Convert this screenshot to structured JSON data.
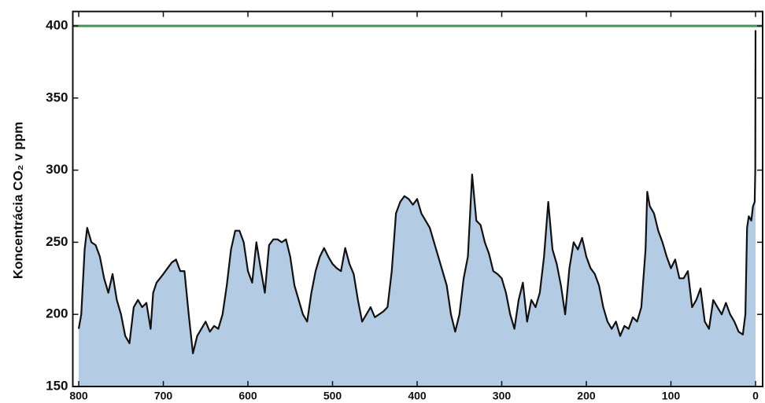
{
  "chart_data": {
    "type": "area",
    "y_label": "Koncentrácia CO₂ v ppm",
    "x": [
      800,
      797,
      793,
      790,
      785,
      780,
      775,
      770,
      765,
      760,
      755,
      750,
      745,
      740,
      735,
      730,
      725,
      720,
      715,
      712,
      708,
      700,
      695,
      690,
      685,
      680,
      675,
      670,
      665,
      660,
      655,
      650,
      645,
      640,
      635,
      630,
      625,
      620,
      615,
      610,
      605,
      600,
      595,
      590,
      585,
      580,
      575,
      570,
      565,
      560,
      555,
      550,
      545,
      540,
      535,
      530,
      525,
      520,
      515,
      510,
      505,
      500,
      495,
      490,
      485,
      480,
      475,
      470,
      465,
      460,
      455,
      450,
      445,
      440,
      435,
      430,
      425,
      420,
      415,
      410,
      405,
      400,
      395,
      390,
      385,
      380,
      375,
      370,
      365,
      360,
      355,
      350,
      345,
      340,
      335,
      330,
      325,
      320,
      315,
      310,
      305,
      300,
      295,
      290,
      285,
      280,
      275,
      270,
      265,
      260,
      255,
      250,
      245,
      240,
      235,
      230,
      225,
      220,
      215,
      210,
      205,
      200,
      195,
      190,
      185,
      180,
      175,
      170,
      165,
      160,
      155,
      150,
      145,
      140,
      135,
      130,
      128,
      125,
      120,
      115,
      110,
      105,
      100,
      95,
      90,
      85,
      80,
      75,
      70,
      65,
      60,
      55,
      50,
      45,
      40,
      35,
      30,
      25,
      20,
      15,
      12,
      10,
      8,
      5,
      3,
      1,
      0.3,
      0
    ],
    "series": [
      {
        "color": "#111111",
        "fill": "#b3cce3",
        "values": [
          190,
          200,
          245,
          260,
          250,
          248,
          240,
          225,
          215,
          228,
          210,
          200,
          185,
          180,
          205,
          210,
          205,
          208,
          190,
          215,
          222,
          228,
          232,
          236,
          238,
          230,
          230,
          200,
          173,
          185,
          190,
          195,
          188,
          192,
          190,
          200,
          220,
          245,
          258,
          258,
          250,
          230,
          222,
          250,
          232,
          215,
          248,
          252,
          252,
          250,
          252,
          240,
          220,
          210,
          200,
          195,
          215,
          230,
          240,
          246,
          240,
          235,
          232,
          230,
          246,
          235,
          228,
          210,
          195,
          200,
          205,
          198,
          200,
          202,
          205,
          230,
          270,
          278,
          282,
          280,
          276,
          280,
          270,
          265,
          260,
          250,
          240,
          230,
          220,
          200,
          188,
          200,
          225,
          240,
          297,
          265,
          262,
          250,
          242,
          230,
          228,
          225,
          215,
          200,
          190,
          210,
          222,
          195,
          210,
          205,
          215,
          240,
          278,
          245,
          235,
          220,
          200,
          232,
          250,
          245,
          253,
          240,
          232,
          228,
          220,
          205,
          195,
          190,
          195,
          185,
          192,
          190,
          198,
          195,
          205,
          245,
          285,
          275,
          270,
          258,
          250,
          240,
          232,
          238,
          225,
          225,
          230,
          205,
          210,
          218,
          195,
          190,
          210,
          205,
          200,
          208,
          200,
          195,
          188,
          186,
          200,
          260,
          268,
          265,
          275,
          278,
          300,
          397
        ]
      }
    ],
    "hline": {
      "value": 400,
      "color": "#3c9a50"
    },
    "xlim": [
      807,
      -8.4
    ],
    "ylim": [
      150,
      410
    ],
    "xticks": [
      800,
      700,
      600,
      500,
      400,
      300,
      200,
      100,
      0
    ],
    "yticks": [
      150,
      200,
      250,
      300,
      350,
      400
    ]
  }
}
